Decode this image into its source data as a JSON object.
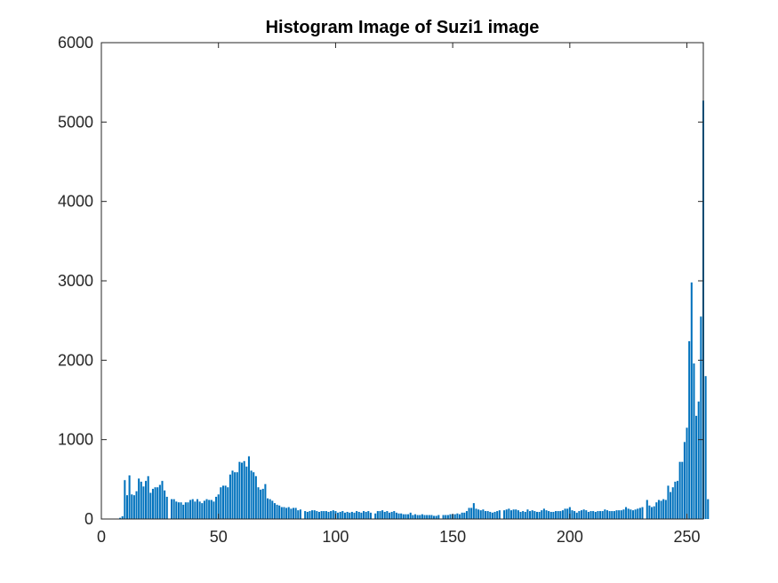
{
  "figure": {
    "title": "Histogram Image of Suzi1 image",
    "background": "#ffffff"
  },
  "chart_data": {
    "type": "bar",
    "title": "Histogram Image of Suzi1 image",
    "xlabel": "",
    "ylabel": "",
    "xlim": [
      0,
      257
    ],
    "ylim": [
      0,
      6000
    ],
    "xticks": [
      0,
      50,
      100,
      150,
      200,
      250
    ],
    "yticks": [
      0,
      1000,
      2000,
      3000,
      4000,
      5000,
      6000
    ],
    "grid": false,
    "legend": "none",
    "bar_color": "#0072bd",
    "axis_color": "#262626",
    "x_start": 0,
    "values": [
      0,
      0,
      0,
      0,
      0,
      0,
      0,
      0,
      15,
      35,
      490,
      300,
      550,
      310,
      300,
      350,
      510,
      470,
      410,
      480,
      540,
      330,
      380,
      400,
      400,
      430,
      480,
      360,
      280,
      0,
      250,
      250,
      220,
      210,
      210,
      180,
      210,
      210,
      240,
      250,
      220,
      250,
      220,
      200,
      230,
      250,
      240,
      240,
      220,
      280,
      310,
      400,
      420,
      420,
      400,
      560,
      610,
      590,
      590,
      720,
      710,
      730,
      660,
      790,
      610,
      590,
      540,
      400,
      370,
      380,
      440,
      260,
      250,
      230,
      200,
      180,
      170,
      150,
      150,
      140,
      150,
      130,
      140,
      140,
      110,
      120,
      0,
      100,
      90,
      100,
      110,
      110,
      100,
      90,
      100,
      100,
      100,
      90,
      100,
      110,
      100,
      80,
      90,
      100,
      80,
      90,
      80,
      90,
      80,
      100,
      90,
      80,
      100,
      90,
      100,
      80,
      0,
      70,
      100,
      100,
      110,
      90,
      100,
      80,
      90,
      100,
      80,
      70,
      70,
      60,
      60,
      60,
      80,
      50,
      60,
      50,
      50,
      60,
      50,
      50,
      50,
      50,
      40,
      40,
      50,
      0,
      50,
      50,
      50,
      60,
      60,
      60,
      70,
      60,
      80,
      80,
      100,
      140,
      140,
      200,
      130,
      120,
      110,
      120,
      100,
      100,
      90,
      80,
      90,
      100,
      110,
      0,
      110,
      120,
      130,
      110,
      120,
      120,
      110,
      90,
      100,
      90,
      120,
      100,
      110,
      100,
      90,
      90,
      110,
      130,
      110,
      100,
      90,
      90,
      100,
      100,
      100,
      110,
      130,
      130,
      150,
      110,
      100,
      80,
      100,
      110,
      120,
      110,
      90,
      100,
      100,
      90,
      100,
      100,
      100,
      120,
      110,
      100,
      100,
      100,
      110,
      110,
      110,
      120,
      150,
      130,
      120,
      110,
      120,
      130,
      140,
      150,
      0,
      240,
      170,
      150,
      160,
      210,
      240,
      230,
      250,
      240,
      420,
      340,
      400,
      470,
      480,
      720,
      720,
      970,
      1150,
      2240,
      2980,
      1960,
      1300,
      1480,
      2550,
      5270,
      1800,
      250
    ]
  }
}
